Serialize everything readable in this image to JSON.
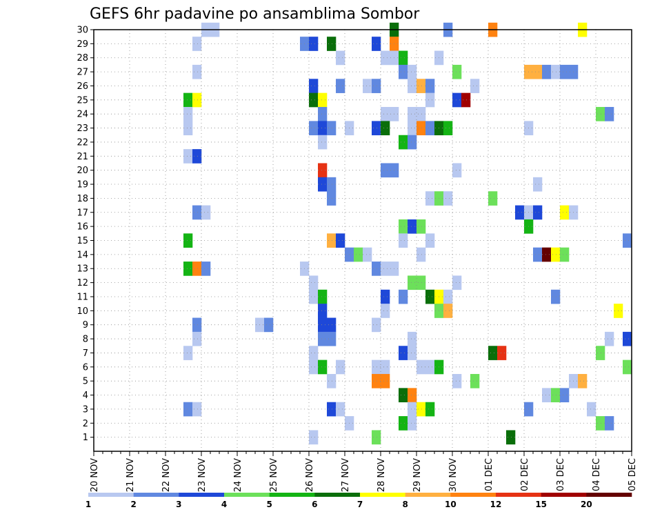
{
  "chart_data": {
    "type": "heatmap",
    "title": "GEFS 6hr padavine po ansamblima Sombor",
    "xlabel": "",
    "ylabel": "",
    "x_tick_labels": [
      "20 NOV",
      "21 NOV",
      "22 NOV",
      "23 NOV",
      "24 NOV",
      "25 NOV",
      "26 NOV",
      "27 NOV",
      "28 NOV",
      "29 NOV",
      "30 NOV",
      "01 DEC",
      "02 DEC",
      "03 DEC",
      "04 DEC",
      "05 DEC"
    ],
    "y_tick_labels": [
      "1",
      "2",
      "3",
      "4",
      "5",
      "6",
      "7",
      "8",
      "9",
      "10",
      "11",
      "12",
      "13",
      "14",
      "15",
      "16",
      "17",
      "18",
      "19",
      "20",
      "21",
      "22",
      "23",
      "24",
      "25",
      "26",
      "27",
      "28",
      "29",
      "30"
    ],
    "grid": true,
    "colorbar": {
      "labels": [
        "1",
        "2",
        "3",
        "4",
        "5",
        "6",
        "7",
        "8",
        "10",
        "12",
        "15",
        "20"
      ],
      "colors": [
        "#b8c8f0",
        "#6088e0",
        "#1e48d8",
        "#6ce05a",
        "#14b414",
        "#0a6e0a",
        "#ffff00",
        "#ffb040",
        "#ff8210",
        "#e63214",
        "#a00000",
        "#640000"
      ]
    },
    "cell_note": "x = 6-hourly step index (0 = 20 NOV 00UTC, 4 steps per day), y = ensemble member, v = colour class index",
    "cells": [
      {
        "x": 12,
        "y": 30,
        "v": 0
      },
      {
        "x": 13,
        "y": 30,
        "v": 0
      },
      {
        "x": 33,
        "y": 30,
        "v": 5
      },
      {
        "x": 39,
        "y": 30,
        "v": 1
      },
      {
        "x": 44,
        "y": 30,
        "v": 8
      },
      {
        "x": 54,
        "y": 30,
        "v": 6
      },
      {
        "x": 11,
        "y": 29,
        "v": 0
      },
      {
        "x": 23,
        "y": 29,
        "v": 1
      },
      {
        "x": 24,
        "y": 29,
        "v": 2
      },
      {
        "x": 26,
        "y": 29,
        "v": 5
      },
      {
        "x": 31,
        "y": 29,
        "v": 2
      },
      {
        "x": 33,
        "y": 29,
        "v": 8
      },
      {
        "x": 27,
        "y": 28,
        "v": 0
      },
      {
        "x": 32,
        "y": 28,
        "v": 0
      },
      {
        "x": 33,
        "y": 28,
        "v": 0
      },
      {
        "x": 34,
        "y": 28,
        "v": 4
      },
      {
        "x": 38,
        "y": 28,
        "v": 0
      },
      {
        "x": 11,
        "y": 27,
        "v": 0
      },
      {
        "x": 34,
        "y": 27,
        "v": 1
      },
      {
        "x": 35,
        "y": 27,
        "v": 0
      },
      {
        "x": 40,
        "y": 27,
        "v": 3
      },
      {
        "x": 48,
        "y": 27,
        "v": 7
      },
      {
        "x": 49,
        "y": 27,
        "v": 7
      },
      {
        "x": 50,
        "y": 27,
        "v": 1
      },
      {
        "x": 51,
        "y": 27,
        "v": 0
      },
      {
        "x": 52,
        "y": 27,
        "v": 1
      },
      {
        "x": 53,
        "y": 27,
        "v": 1
      },
      {
        "x": 24,
        "y": 26,
        "v": 2
      },
      {
        "x": 27,
        "y": 26,
        "v": 1
      },
      {
        "x": 30,
        "y": 26,
        "v": 0
      },
      {
        "x": 31,
        "y": 26,
        "v": 1
      },
      {
        "x": 35,
        "y": 26,
        "v": 0
      },
      {
        "x": 36,
        "y": 26,
        "v": 7
      },
      {
        "x": 37,
        "y": 26,
        "v": 1
      },
      {
        "x": 42,
        "y": 26,
        "v": 0
      },
      {
        "x": 10,
        "y": 25,
        "v": 4
      },
      {
        "x": 11,
        "y": 25,
        "v": 6
      },
      {
        "x": 24,
        "y": 25,
        "v": 5
      },
      {
        "x": 25,
        "y": 25,
        "v": 6
      },
      {
        "x": 37,
        "y": 25,
        "v": 0
      },
      {
        "x": 40,
        "y": 25,
        "v": 2
      },
      {
        "x": 41,
        "y": 25,
        "v": 10
      },
      {
        "x": 10,
        "y": 24,
        "v": 0
      },
      {
        "x": 25,
        "y": 24,
        "v": 1
      },
      {
        "x": 32,
        "y": 24,
        "v": 0
      },
      {
        "x": 33,
        "y": 24,
        "v": 0
      },
      {
        "x": 35,
        "y": 24,
        "v": 0
      },
      {
        "x": 36,
        "y": 24,
        "v": 0
      },
      {
        "x": 56,
        "y": 24,
        "v": 3
      },
      {
        "x": 57,
        "y": 24,
        "v": 1
      },
      {
        "x": 10,
        "y": 23,
        "v": 0
      },
      {
        "x": 24,
        "y": 23,
        "v": 1
      },
      {
        "x": 25,
        "y": 23,
        "v": 2
      },
      {
        "x": 26,
        "y": 23,
        "v": 1
      },
      {
        "x": 28,
        "y": 23,
        "v": 0
      },
      {
        "x": 31,
        "y": 23,
        "v": 2
      },
      {
        "x": 32,
        "y": 23,
        "v": 5
      },
      {
        "x": 35,
        "y": 23,
        "v": 0
      },
      {
        "x": 36,
        "y": 23,
        "v": 8
      },
      {
        "x": 37,
        "y": 23,
        "v": 1
      },
      {
        "x": 38,
        "y": 23,
        "v": 5
      },
      {
        "x": 39,
        "y": 23,
        "v": 4
      },
      {
        "x": 48,
        "y": 23,
        "v": 0
      },
      {
        "x": 25,
        "y": 22,
        "v": 0
      },
      {
        "x": 34,
        "y": 22,
        "v": 4
      },
      {
        "x": 35,
        "y": 22,
        "v": 1
      },
      {
        "x": 10,
        "y": 21,
        "v": 0
      },
      {
        "x": 11,
        "y": 21,
        "v": 2
      },
      {
        "x": 25,
        "y": 20,
        "v": 9
      },
      {
        "x": 32,
        "y": 20,
        "v": 1
      },
      {
        "x": 33,
        "y": 20,
        "v": 1
      },
      {
        "x": 40,
        "y": 20,
        "v": 0
      },
      {
        "x": 25,
        "y": 19,
        "v": 2
      },
      {
        "x": 26,
        "y": 19,
        "v": 1
      },
      {
        "x": 49,
        "y": 19,
        "v": 0
      },
      {
        "x": 26,
        "y": 18,
        "v": 1
      },
      {
        "x": 37,
        "y": 18,
        "v": 0
      },
      {
        "x": 38,
        "y": 18,
        "v": 3
      },
      {
        "x": 39,
        "y": 18,
        "v": 0
      },
      {
        "x": 44,
        "y": 18,
        "v": 3
      },
      {
        "x": 11,
        "y": 17,
        "v": 1
      },
      {
        "x": 12,
        "y": 17,
        "v": 0
      },
      {
        "x": 47,
        "y": 17,
        "v": 2
      },
      {
        "x": 48,
        "y": 17,
        "v": 0
      },
      {
        "x": 49,
        "y": 17,
        "v": 2
      },
      {
        "x": 52,
        "y": 17,
        "v": 6
      },
      {
        "x": 53,
        "y": 17,
        "v": 0
      },
      {
        "x": 34,
        "y": 16,
        "v": 3
      },
      {
        "x": 35,
        "y": 16,
        "v": 2
      },
      {
        "x": 36,
        "y": 16,
        "v": 3
      },
      {
        "x": 48,
        "y": 16,
        "v": 4
      },
      {
        "x": 10,
        "y": 15,
        "v": 4
      },
      {
        "x": 26,
        "y": 15,
        "v": 7
      },
      {
        "x": 27,
        "y": 15,
        "v": 2
      },
      {
        "x": 34,
        "y": 15,
        "v": 0
      },
      {
        "x": 37,
        "y": 15,
        "v": 0
      },
      {
        "x": 59,
        "y": 15,
        "v": 1
      },
      {
        "x": 28,
        "y": 14,
        "v": 1
      },
      {
        "x": 29,
        "y": 14,
        "v": 3
      },
      {
        "x": 30,
        "y": 14,
        "v": 0
      },
      {
        "x": 36,
        "y": 14,
        "v": 0
      },
      {
        "x": 49,
        "y": 14,
        "v": 1
      },
      {
        "x": 50,
        "y": 14,
        "v": 11
      },
      {
        "x": 51,
        "y": 14,
        "v": 6
      },
      {
        "x": 52,
        "y": 14,
        "v": 3
      },
      {
        "x": 10,
        "y": 13,
        "v": 4
      },
      {
        "x": 11,
        "y": 13,
        "v": 8
      },
      {
        "x": 12,
        "y": 13,
        "v": 1
      },
      {
        "x": 23,
        "y": 13,
        "v": 0
      },
      {
        "x": 31,
        "y": 13,
        "v": 1
      },
      {
        "x": 32,
        "y": 13,
        "v": 0
      },
      {
        "x": 33,
        "y": 13,
        "v": 0
      },
      {
        "x": 24,
        "y": 12,
        "v": 0
      },
      {
        "x": 35,
        "y": 12,
        "v": 3
      },
      {
        "x": 36,
        "y": 12,
        "v": 3
      },
      {
        "x": 40,
        "y": 12,
        "v": 0
      },
      {
        "x": 24,
        "y": 11,
        "v": 0
      },
      {
        "x": 25,
        "y": 11,
        "v": 4
      },
      {
        "x": 32,
        "y": 11,
        "v": 2
      },
      {
        "x": 34,
        "y": 11,
        "v": 1
      },
      {
        "x": 37,
        "y": 11,
        "v": 5
      },
      {
        "x": 38,
        "y": 11,
        "v": 6
      },
      {
        "x": 39,
        "y": 11,
        "v": 0
      },
      {
        "x": 51,
        "y": 11,
        "v": 1
      },
      {
        "x": 25,
        "y": 10,
        "v": 2
      },
      {
        "x": 32,
        "y": 10,
        "v": 0
      },
      {
        "x": 38,
        "y": 10,
        "v": 3
      },
      {
        "x": 39,
        "y": 10,
        "v": 7
      },
      {
        "x": 58,
        "y": 10,
        "v": 6
      },
      {
        "x": 11,
        "y": 9,
        "v": 1
      },
      {
        "x": 18,
        "y": 9,
        "v": 0
      },
      {
        "x": 19,
        "y": 9,
        "v": 1
      },
      {
        "x": 25,
        "y": 9,
        "v": 2
      },
      {
        "x": 26,
        "y": 9,
        "v": 2
      },
      {
        "x": 31,
        "y": 9,
        "v": 0
      },
      {
        "x": 11,
        "y": 8,
        "v": 0
      },
      {
        "x": 25,
        "y": 8,
        "v": 1
      },
      {
        "x": 26,
        "y": 8,
        "v": 1
      },
      {
        "x": 35,
        "y": 8,
        "v": 0
      },
      {
        "x": 57,
        "y": 8,
        "v": 0
      },
      {
        "x": 59,
        "y": 8,
        "v": 2
      },
      {
        "x": 10,
        "y": 7,
        "v": 0
      },
      {
        "x": 24,
        "y": 7,
        "v": 0
      },
      {
        "x": 34,
        "y": 7,
        "v": 2
      },
      {
        "x": 35,
        "y": 7,
        "v": 0
      },
      {
        "x": 44,
        "y": 7,
        "v": 5
      },
      {
        "x": 45,
        "y": 7,
        "v": 9
      },
      {
        "x": 56,
        "y": 7,
        "v": 3
      },
      {
        "x": 24,
        "y": 6,
        "v": 0
      },
      {
        "x": 25,
        "y": 6,
        "v": 4
      },
      {
        "x": 27,
        "y": 6,
        "v": 0
      },
      {
        "x": 31,
        "y": 6,
        "v": 0
      },
      {
        "x": 32,
        "y": 6,
        "v": 0
      },
      {
        "x": 36,
        "y": 6,
        "v": 0
      },
      {
        "x": 37,
        "y": 6,
        "v": 0
      },
      {
        "x": 38,
        "y": 6,
        "v": 4
      },
      {
        "x": 59,
        "y": 6,
        "v": 3
      },
      {
        "x": 26,
        "y": 5,
        "v": 0
      },
      {
        "x": 31,
        "y": 5,
        "v": 8
      },
      {
        "x": 32,
        "y": 5,
        "v": 8
      },
      {
        "x": 40,
        "y": 5,
        "v": 0
      },
      {
        "x": 42,
        "y": 5,
        "v": 3
      },
      {
        "x": 53,
        "y": 5,
        "v": 0
      },
      {
        "x": 54,
        "y": 5,
        "v": 7
      },
      {
        "x": 34,
        "y": 4,
        "v": 5
      },
      {
        "x": 35,
        "y": 4,
        "v": 8
      },
      {
        "x": 50,
        "y": 4,
        "v": 0
      },
      {
        "x": 51,
        "y": 4,
        "v": 3
      },
      {
        "x": 52,
        "y": 4,
        "v": 1
      },
      {
        "x": 10,
        "y": 3,
        "v": 1
      },
      {
        "x": 11,
        "y": 3,
        "v": 0
      },
      {
        "x": 26,
        "y": 3,
        "v": 2
      },
      {
        "x": 27,
        "y": 3,
        "v": 0
      },
      {
        "x": 35,
        "y": 3,
        "v": 0
      },
      {
        "x": 36,
        "y": 3,
        "v": 6
      },
      {
        "x": 37,
        "y": 3,
        "v": 4
      },
      {
        "x": 48,
        "y": 3,
        "v": 1
      },
      {
        "x": 55,
        "y": 3,
        "v": 0
      },
      {
        "x": 28,
        "y": 2,
        "v": 0
      },
      {
        "x": 34,
        "y": 2,
        "v": 4
      },
      {
        "x": 35,
        "y": 2,
        "v": 0
      },
      {
        "x": 56,
        "y": 2,
        "v": 3
      },
      {
        "x": 57,
        "y": 2,
        "v": 1
      },
      {
        "x": 24,
        "y": 1,
        "v": 0
      },
      {
        "x": 31,
        "y": 1,
        "v": 3
      },
      {
        "x": 46,
        "y": 1,
        "v": 5
      }
    ]
  }
}
